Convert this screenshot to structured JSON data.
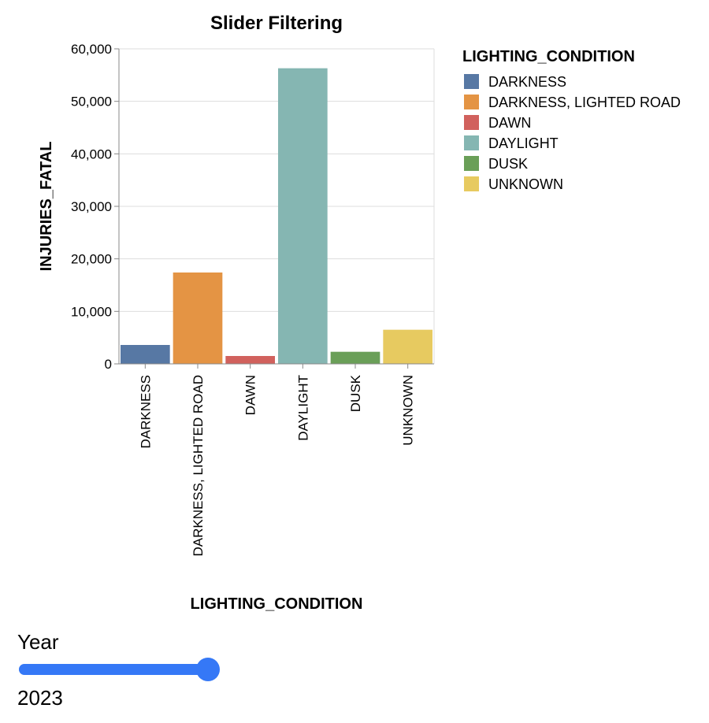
{
  "chart_data": {
    "type": "bar",
    "title": "Slider Filtering",
    "xlabel": "LIGHTING_CONDITION",
    "ylabel": "INJURIES_FATAL",
    "categories": [
      "DARKNESS",
      "DARKNESS, LIGHTED ROAD",
      "DAWN",
      "DAYLIGHT",
      "DUSK",
      "UNKNOWN"
    ],
    "values": [
      3600,
      17400,
      1500,
      56300,
      2300,
      6500
    ],
    "colors": [
      "#5778a4",
      "#e49444",
      "#d1615d",
      "#85b6b2",
      "#6a9f58",
      "#e7ca60"
    ],
    "ylim": [
      0,
      60000
    ],
    "yticks": [
      0,
      10000,
      20000,
      30000,
      40000,
      50000,
      60000
    ],
    "ytick_labels": [
      "0",
      "10,000",
      "20,000",
      "30,000",
      "40,000",
      "50,000",
      "60,000"
    ],
    "grid": true,
    "legend": {
      "title": "LIGHTING_CONDITION",
      "placement": "right",
      "entries": [
        "DARKNESS",
        "DARKNESS, LIGHTED ROAD",
        "DAWN",
        "DAYLIGHT",
        "DUSK",
        "UNKNOWN"
      ]
    }
  },
  "slider": {
    "label": "Year",
    "value": "2023",
    "fill_fraction": 1.0,
    "accent": "#3578f6"
  }
}
